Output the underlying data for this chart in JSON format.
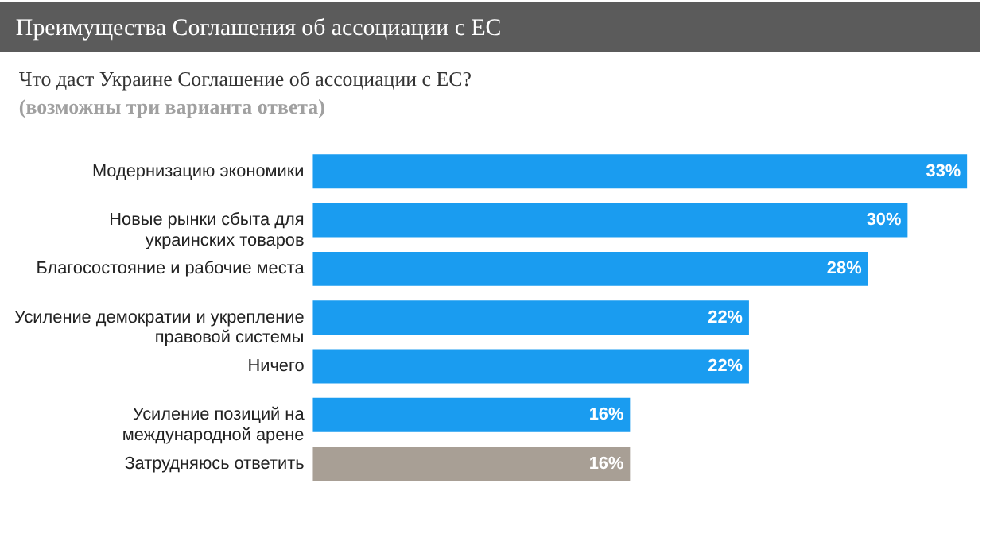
{
  "chart_data": {
    "type": "bar",
    "orientation": "horizontal",
    "title": "Преимущества Соглашения об ассоциации с ЕС",
    "subtitle": "Что даст Украине Соглашение об ассоциации с ЕС?",
    "annotations": [
      "(возможны три варианта ответа)"
    ],
    "categories": [
      "Модернизацию экономики",
      "Новые рынки сбыта для\nукраинских товаров",
      "Благосостояние и рабочие места",
      "Усиление демократии и укрепление\nправовой системы",
      "Ничего",
      "Усиление позиций на\nмеждународной арене",
      "Затрудняюсь ответить"
    ],
    "values": [
      33,
      30,
      28,
      22,
      22,
      16,
      16
    ],
    "value_labels": [
      "33%",
      "30%",
      "28%",
      "22%",
      "22%",
      "16%",
      "16%"
    ],
    "colors": [
      "#1a9cf0",
      "#1a9cf0",
      "#1a9cf0",
      "#1a9cf0",
      "#1a9cf0",
      "#1a9cf0",
      "#a89f95"
    ],
    "grid": false,
    "legend": false
  }
}
